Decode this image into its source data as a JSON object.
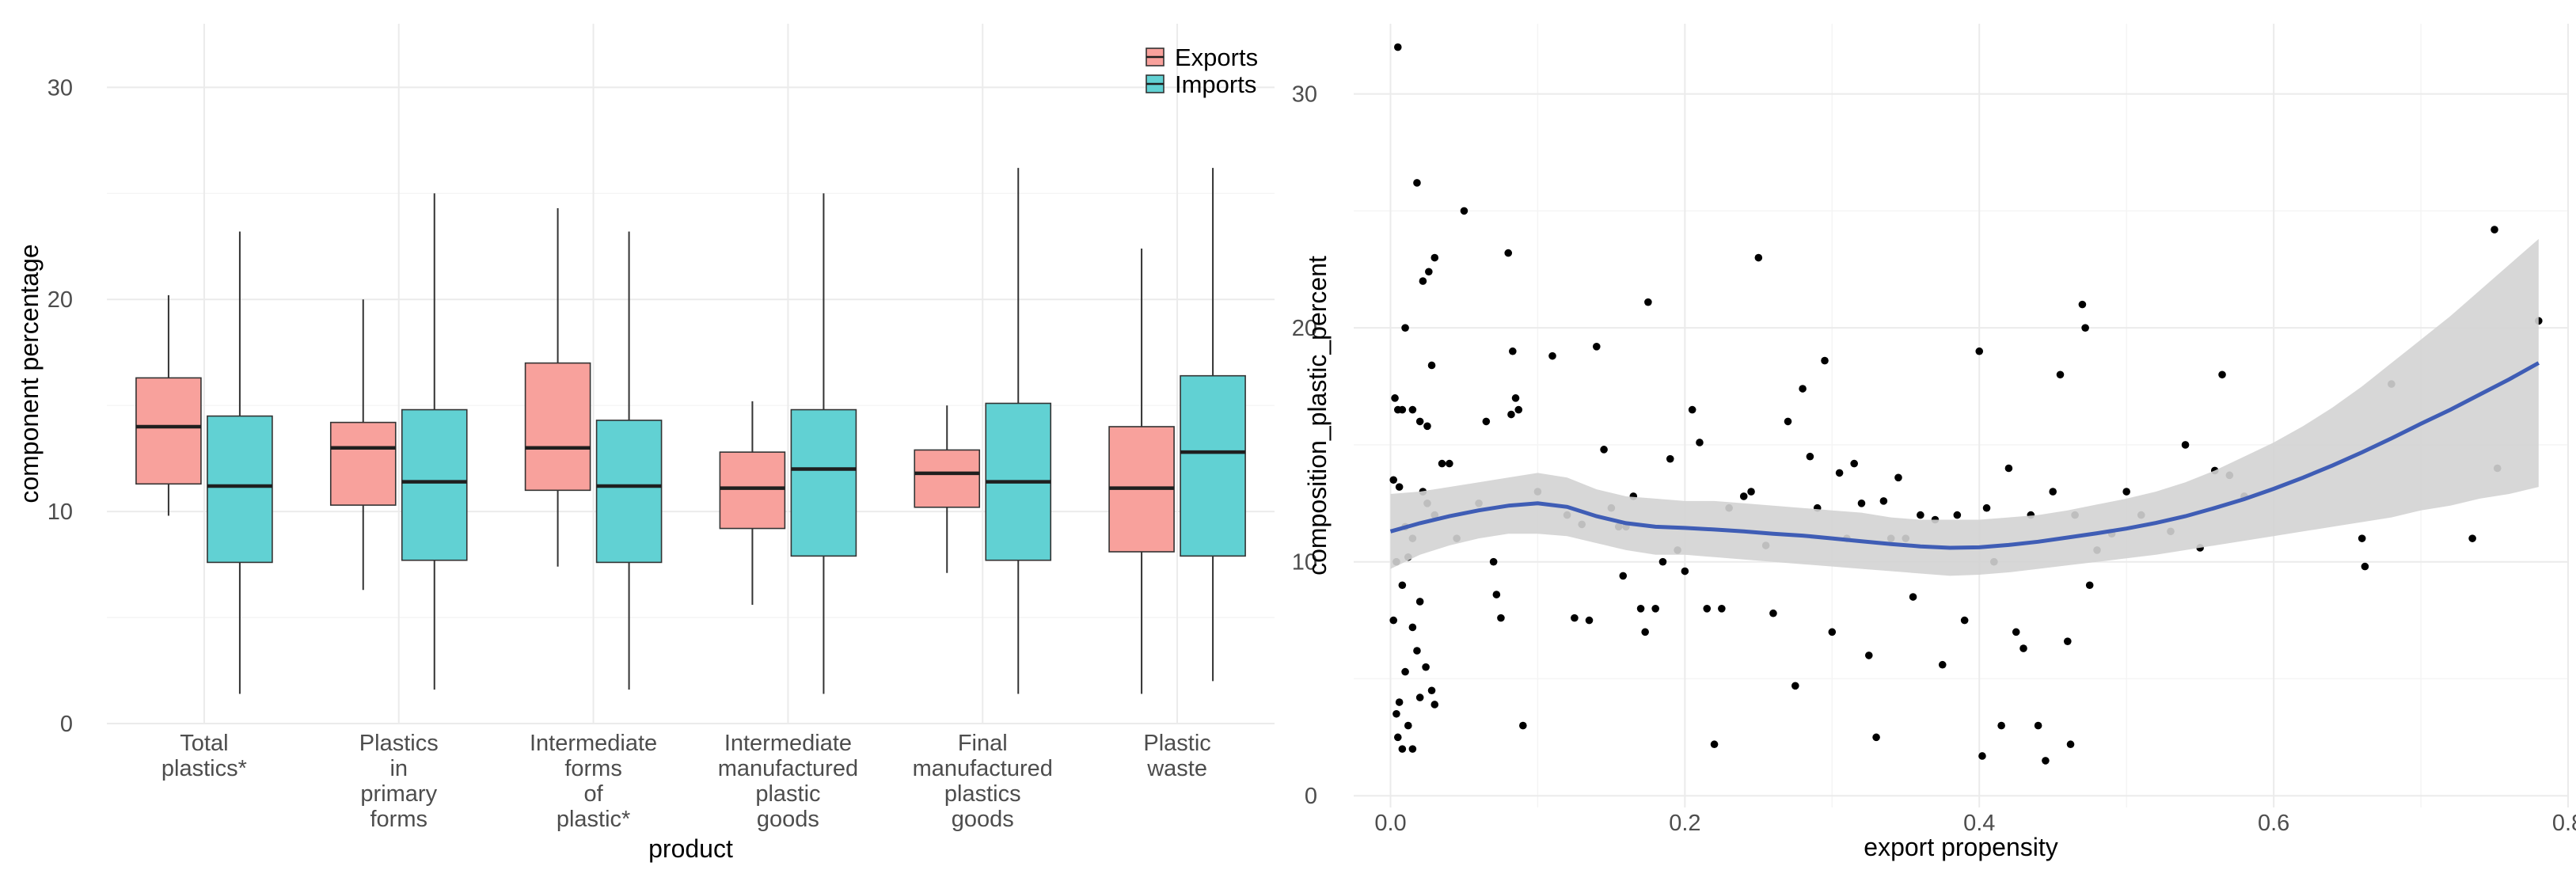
{
  "chart_data": [
    {
      "type": "boxplot",
      "xlabel": "product",
      "ylabel": "component percentage",
      "ylim": [
        0,
        33
      ],
      "yticks": [
        0,
        10,
        20,
        30
      ],
      "grid": true,
      "legend_position": "top-right",
      "categories": [
        [
          "Total",
          "plastics*"
        ],
        [
          "Plastics",
          "in",
          "primary",
          "forms"
        ],
        [
          "Intermediate",
          "forms",
          "of",
          "plastic*"
        ],
        [
          "Intermediate",
          "manufactured",
          "plastic",
          "goods"
        ],
        [
          "Final",
          "manufactured",
          "plastics",
          "goods"
        ],
        [
          "Plastic",
          "waste"
        ]
      ],
      "series": [
        {
          "name": "Exports",
          "color": "#F8A19C",
          "boxes": [
            {
              "min": 9.8,
              "q1": 11.3,
              "median": 14.0,
              "q3": 16.3,
              "max": 20.2
            },
            {
              "min": 6.3,
              "q1": 10.3,
              "median": 13.0,
              "q3": 14.2,
              "max": 20.0
            },
            {
              "min": 7.4,
              "q1": 11.0,
              "median": 13.0,
              "q3": 17.0,
              "max": 24.3
            },
            {
              "min": 5.6,
              "q1": 9.2,
              "median": 11.1,
              "q3": 12.8,
              "max": 15.2
            },
            {
              "min": 7.1,
              "q1": 10.2,
              "median": 11.8,
              "q3": 12.9,
              "max": 15.0
            },
            {
              "min": 1.4,
              "q1": 8.1,
              "median": 11.1,
              "q3": 14.0,
              "max": 22.4
            }
          ]
        },
        {
          "name": "Imports",
          "color": "#61D1D3",
          "boxes": [
            {
              "min": 1.4,
              "q1": 7.6,
              "median": 11.2,
              "q3": 14.5,
              "max": 23.2
            },
            {
              "min": 1.6,
              "q1": 7.7,
              "median": 11.4,
              "q3": 14.8,
              "max": 25.0
            },
            {
              "min": 1.6,
              "q1": 7.6,
              "median": 11.2,
              "q3": 14.3,
              "max": 23.2
            },
            {
              "min": 1.4,
              "q1": 7.9,
              "median": 12.0,
              "q3": 14.8,
              "max": 25.0
            },
            {
              "min": 1.4,
              "q1": 7.7,
              "median": 11.4,
              "q3": 15.1,
              "max": 26.2
            },
            {
              "min": 2.0,
              "q1": 7.9,
              "median": 12.8,
              "q3": 16.4,
              "max": 26.2
            }
          ]
        }
      ]
    },
    {
      "type": "scatter",
      "xlabel": "export propensity",
      "ylabel": "composition_plastic_percent",
      "xlim": [
        -0.025,
        0.8
      ],
      "ylim": [
        -0.5,
        33
      ],
      "xticks": [
        0.0,
        0.2,
        0.4,
        0.6,
        0.8
      ],
      "xtick_labels": [
        "0.0",
        "0.2",
        "0.4",
        "0.6",
        "0.8"
      ],
      "yticks": [
        0,
        10,
        20,
        30
      ],
      "grid": true,
      "point_color": "#000000",
      "smooth_color": "#3F5DB5",
      "band_color": "#D3D3D3",
      "points": [
        [
          0.005,
          32.0
        ],
        [
          0.018,
          26.2
        ],
        [
          0.05,
          25.0
        ],
        [
          0.03,
          23.0
        ],
        [
          0.022,
          22.0
        ],
        [
          0.026,
          22.4
        ],
        [
          0.01,
          20.0
        ],
        [
          0.003,
          17.0
        ],
        [
          0.005,
          16.5
        ],
        [
          0.008,
          16.5
        ],
        [
          0.015,
          16.5
        ],
        [
          0.02,
          16.0
        ],
        [
          0.025,
          15.8
        ],
        [
          0.028,
          18.4
        ],
        [
          0.04,
          14.2
        ],
        [
          0.035,
          14.2
        ],
        [
          0.002,
          13.5
        ],
        [
          0.006,
          13.2
        ],
        [
          0.022,
          13.0
        ],
        [
          0.03,
          12.0
        ],
        [
          0.025,
          12.5
        ],
        [
          0.01,
          11.5
        ],
        [
          0.015,
          11.0
        ],
        [
          0.004,
          10.0
        ],
        [
          0.012,
          10.2
        ],
        [
          0.008,
          9.0
        ],
        [
          0.02,
          8.3
        ],
        [
          0.002,
          7.5
        ],
        [
          0.015,
          7.2
        ],
        [
          0.018,
          6.2
        ],
        [
          0.024,
          5.5
        ],
        [
          0.01,
          5.3
        ],
        [
          0.006,
          4.0
        ],
        [
          0.02,
          4.2
        ],
        [
          0.028,
          4.5
        ],
        [
          0.03,
          3.9
        ],
        [
          0.004,
          3.5
        ],
        [
          0.012,
          3.0
        ],
        [
          0.005,
          2.5
        ],
        [
          0.008,
          2.0
        ],
        [
          0.015,
          2.0
        ],
        [
          0.045,
          11.0
        ],
        [
          0.06,
          12.5
        ],
        [
          0.065,
          16.0
        ],
        [
          0.07,
          10.0
        ],
        [
          0.072,
          8.6
        ],
        [
          0.075,
          7.6
        ],
        [
          0.08,
          23.2
        ],
        [
          0.082,
          16.3
        ],
        [
          0.083,
          19.0
        ],
        [
          0.085,
          17.0
        ],
        [
          0.087,
          16.5
        ],
        [
          0.09,
          3.0
        ],
        [
          0.1,
          13.0
        ],
        [
          0.11,
          18.8
        ],
        [
          0.12,
          12.0
        ],
        [
          0.125,
          7.6
        ],
        [
          0.13,
          11.6
        ],
        [
          0.135,
          7.5
        ],
        [
          0.14,
          19.2
        ],
        [
          0.145,
          14.8
        ],
        [
          0.15,
          12.3
        ],
        [
          0.155,
          11.5
        ],
        [
          0.158,
          9.4
        ],
        [
          0.16,
          11.5
        ],
        [
          0.165,
          12.8
        ],
        [
          0.17,
          8.0
        ],
        [
          0.173,
          7.0
        ],
        [
          0.175,
          21.1
        ],
        [
          0.18,
          8.0
        ],
        [
          0.185,
          10.0
        ],
        [
          0.19,
          14.4
        ],
        [
          0.195,
          10.5
        ],
        [
          0.2,
          9.6
        ],
        [
          0.205,
          16.5
        ],
        [
          0.21,
          15.1
        ],
        [
          0.215,
          8.0
        ],
        [
          0.22,
          2.2
        ],
        [
          0.225,
          8.0
        ],
        [
          0.23,
          12.3
        ],
        [
          0.24,
          12.8
        ],
        [
          0.245,
          13.0
        ],
        [
          0.25,
          23.0
        ],
        [
          0.255,
          10.7
        ],
        [
          0.26,
          7.8
        ],
        [
          0.27,
          16.0
        ],
        [
          0.275,
          4.7
        ],
        [
          0.28,
          17.4
        ],
        [
          0.285,
          14.5
        ],
        [
          0.29,
          12.3
        ],
        [
          0.295,
          18.6
        ],
        [
          0.3,
          7.0
        ],
        [
          0.305,
          13.8
        ],
        [
          0.31,
          11.0
        ],
        [
          0.315,
          14.2
        ],
        [
          0.32,
          12.5
        ],
        [
          0.325,
          6.0
        ],
        [
          0.33,
          2.5
        ],
        [
          0.335,
          12.6
        ],
        [
          0.34,
          11.0
        ],
        [
          0.345,
          13.6
        ],
        [
          0.35,
          11.0
        ],
        [
          0.355,
          8.5
        ],
        [
          0.36,
          12.0
        ],
        [
          0.37,
          11.8
        ],
        [
          0.375,
          5.6
        ],
        [
          0.385,
          12.0
        ],
        [
          0.39,
          7.5
        ],
        [
          0.4,
          19.0
        ],
        [
          0.402,
          1.7
        ],
        [
          0.405,
          12.3
        ],
        [
          0.41,
          10.0
        ],
        [
          0.415,
          3.0
        ],
        [
          0.42,
          14.0
        ],
        [
          0.425,
          7.0
        ],
        [
          0.43,
          6.3
        ],
        [
          0.435,
          12.0
        ],
        [
          0.44,
          3.0
        ],
        [
          0.445,
          1.5
        ],
        [
          0.45,
          13.0
        ],
        [
          0.455,
          18.0
        ],
        [
          0.46,
          6.6
        ],
        [
          0.462,
          2.2
        ],
        [
          0.465,
          12.0
        ],
        [
          0.47,
          21.0
        ],
        [
          0.472,
          20.0
        ],
        [
          0.475,
          9.0
        ],
        [
          0.48,
          10.5
        ],
        [
          0.49,
          11.2
        ],
        [
          0.5,
          13.0
        ],
        [
          0.51,
          12.0
        ],
        [
          0.53,
          11.3
        ],
        [
          0.54,
          15.0
        ],
        [
          0.55,
          10.6
        ],
        [
          0.56,
          13.9
        ],
        [
          0.565,
          18.0
        ],
        [
          0.57,
          13.7
        ],
        [
          0.58,
          12.8
        ],
        [
          0.66,
          11.0
        ],
        [
          0.662,
          9.8
        ],
        [
          0.68,
          17.6
        ],
        [
          0.735,
          11.0
        ],
        [
          0.75,
          24.2
        ],
        [
          0.752,
          14.0
        ],
        [
          0.78,
          20.3
        ]
      ],
      "smooth_fit": [
        [
          0.0,
          11.3
        ],
        [
          0.02,
          11.65
        ],
        [
          0.04,
          11.95
        ],
        [
          0.06,
          12.2
        ],
        [
          0.08,
          12.4
        ],
        [
          0.1,
          12.5
        ],
        [
          0.12,
          12.35
        ],
        [
          0.14,
          11.95
        ],
        [
          0.16,
          11.65
        ],
        [
          0.18,
          11.5
        ],
        [
          0.2,
          11.45
        ],
        [
          0.22,
          11.38
        ],
        [
          0.24,
          11.3
        ],
        [
          0.26,
          11.2
        ],
        [
          0.28,
          11.12
        ],
        [
          0.3,
          11.0
        ],
        [
          0.32,
          10.88
        ],
        [
          0.34,
          10.76
        ],
        [
          0.36,
          10.66
        ],
        [
          0.38,
          10.6
        ],
        [
          0.4,
          10.62
        ],
        [
          0.42,
          10.72
        ],
        [
          0.44,
          10.86
        ],
        [
          0.46,
          11.04
        ],
        [
          0.48,
          11.22
        ],
        [
          0.5,
          11.42
        ],
        [
          0.52,
          11.66
        ],
        [
          0.54,
          11.95
        ],
        [
          0.56,
          12.3
        ],
        [
          0.58,
          12.68
        ],
        [
          0.6,
          13.12
        ],
        [
          0.62,
          13.6
        ],
        [
          0.64,
          14.12
        ],
        [
          0.66,
          14.68
        ],
        [
          0.68,
          15.28
        ],
        [
          0.7,
          15.9
        ],
        [
          0.72,
          16.5
        ],
        [
          0.74,
          17.15
        ],
        [
          0.76,
          17.8
        ],
        [
          0.78,
          18.5
        ]
      ],
      "confidence_band": [
        [
          0.0,
          9.7,
          12.9
        ],
        [
          0.02,
          10.3,
          13.0
        ],
        [
          0.04,
          10.7,
          13.2
        ],
        [
          0.06,
          11.0,
          13.4
        ],
        [
          0.08,
          11.2,
          13.6
        ],
        [
          0.1,
          11.2,
          13.8
        ],
        [
          0.12,
          11.1,
          13.6
        ],
        [
          0.14,
          10.8,
          13.1
        ],
        [
          0.16,
          10.5,
          12.8
        ],
        [
          0.18,
          10.3,
          12.7
        ],
        [
          0.2,
          10.3,
          12.6
        ],
        [
          0.22,
          10.2,
          12.6
        ],
        [
          0.24,
          10.1,
          12.5
        ],
        [
          0.26,
          10.0,
          12.4
        ],
        [
          0.28,
          9.9,
          12.3
        ],
        [
          0.3,
          9.8,
          12.2
        ],
        [
          0.32,
          9.7,
          12.1
        ],
        [
          0.34,
          9.6,
          11.9
        ],
        [
          0.36,
          9.5,
          11.8
        ],
        [
          0.38,
          9.4,
          11.8
        ],
        [
          0.4,
          9.45,
          11.8
        ],
        [
          0.42,
          9.55,
          11.9
        ],
        [
          0.44,
          9.7,
          12.0
        ],
        [
          0.46,
          9.85,
          12.2
        ],
        [
          0.48,
          10.0,
          12.45
        ],
        [
          0.5,
          10.15,
          12.7
        ],
        [
          0.52,
          10.3,
          13.0
        ],
        [
          0.54,
          10.5,
          13.4
        ],
        [
          0.56,
          10.7,
          13.9
        ],
        [
          0.58,
          10.9,
          14.5
        ],
        [
          0.6,
          11.1,
          15.1
        ],
        [
          0.62,
          11.3,
          15.8
        ],
        [
          0.64,
          11.5,
          16.6
        ],
        [
          0.66,
          11.7,
          17.5
        ],
        [
          0.68,
          11.9,
          18.5
        ],
        [
          0.7,
          12.2,
          19.5
        ],
        [
          0.72,
          12.4,
          20.5
        ],
        [
          0.74,
          12.7,
          21.6
        ],
        [
          0.76,
          12.9,
          22.7
        ],
        [
          0.78,
          13.2,
          23.8
        ]
      ]
    }
  ]
}
